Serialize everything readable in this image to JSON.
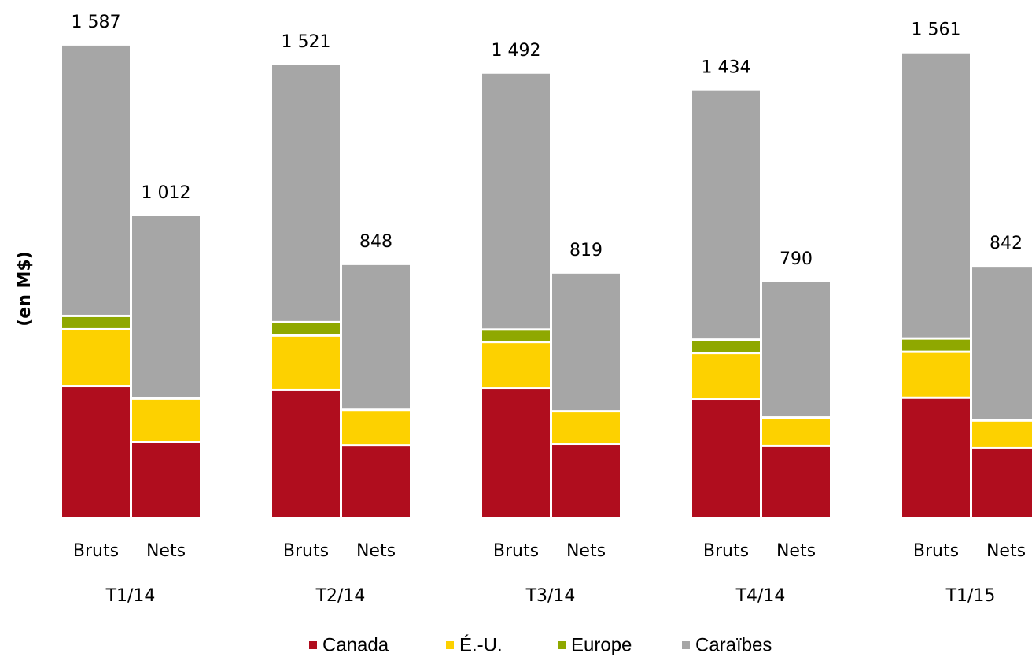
{
  "chart_data": {
    "type": "stacked-bar",
    "y_label": "(en M$)",
    "groups": [
      "T1/14",
      "T2/14",
      "T3/14",
      "T4/14",
      "T1/15"
    ],
    "categories": [
      "Bruts",
      "Nets",
      "Bruts",
      "Nets",
      "Bruts",
      "Nets",
      "Bruts",
      "Nets",
      "Bruts",
      "Nets"
    ],
    "series": [
      {
        "name": "Canada",
        "color": "#b00d1e",
        "values": [
          437,
          249,
          424,
          238,
          429,
          241,
          392,
          236,
          398,
          228
        ]
      },
      {
        "name": "É.-U.",
        "color": "#fdd100",
        "values": [
          191,
          146,
          183,
          119,
          156,
          111,
          156,
          95,
          154,
          93
        ]
      },
      {
        "name": "Europe",
        "color": "#8fa800",
        "values": [
          45,
          0,
          45,
          0,
          42,
          0,
          45,
          0,
          45,
          0
        ]
      },
      {
        "name": "Caraïbes",
        "color": "#a6a6a6",
        "values": [
          914,
          617,
          869,
          491,
          865,
          467,
          841,
          459,
          964,
          521
        ]
      }
    ],
    "totals": [
      1587,
      1012,
      1521,
      848,
      1492,
      819,
      1434,
      790,
      1561,
      842
    ],
    "total_labels": [
      "1 587",
      "1 012",
      "1 521",
      "848",
      "1 492",
      "819",
      "1 434",
      "790",
      "1 561",
      "842"
    ],
    "ylim": [
      0,
      1600
    ]
  }
}
